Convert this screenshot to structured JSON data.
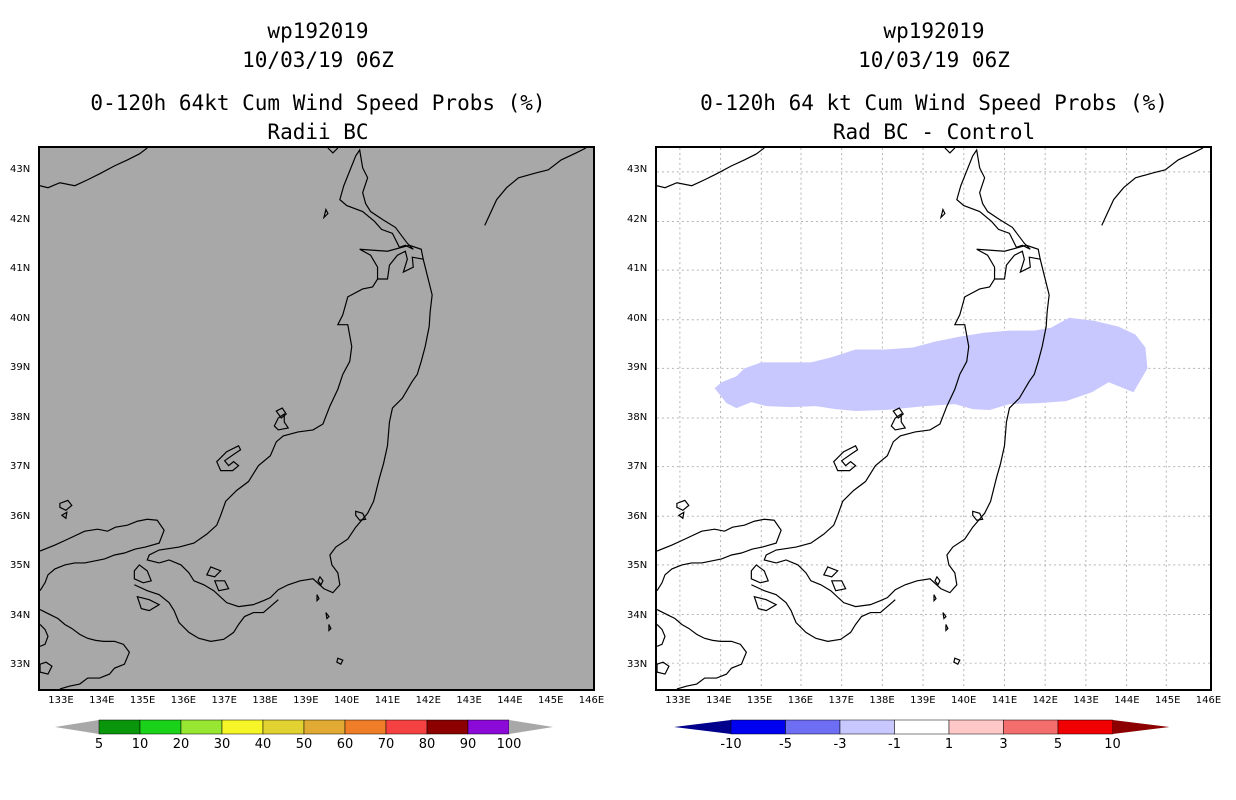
{
  "left_panel": {
    "title_line1": "wp192019",
    "title_line2": "10/03/19 06Z",
    "title_line3": "0-120h 64kt Cum Wind Speed Probs (%)",
    "title_line4": "Radii BC",
    "background_color": "#a8a8a8",
    "colorbar": {
      "colors": [
        "#0a960a",
        "#19d219",
        "#96e632",
        "#f5f528",
        "#e1d232",
        "#e1aa32",
        "#f07d28",
        "#f54141",
        "#8c0000",
        "#8c0ad7"
      ],
      "labels": [
        "5",
        "10",
        "20",
        "30",
        "40",
        "50",
        "60",
        "70",
        "80",
        "90",
        "100"
      ],
      "end_color": "#a8a8a8"
    }
  },
  "right_panel": {
    "title_line1": "wp192019",
    "title_line2": "10/03/19 06Z",
    "title_line3": "0-120h 64 kt Cum Wind Speed Probs (%)",
    "title_line4": "Rad BC - Control",
    "background_color": "#ffffff",
    "shaded_region_color": "#c8c8ff",
    "colorbar": {
      "colors": [
        "#0000f0",
        "#6e6ef5",
        "#c8c8ff",
        "#ffffff",
        "#ffc8c8",
        "#f56e6e",
        "#f00000"
      ],
      "labels": [
        "-10",
        "-5",
        "-3",
        "-1",
        "1",
        "3",
        "5",
        "10"
      ],
      "low_end_color": "#00008c",
      "high_end_color": "#8c0000"
    }
  },
  "lat_labels": [
    "43N",
    "42N",
    "41N",
    "40N",
    "39N",
    "38N",
    "37N",
    "36N",
    "35N",
    "34N",
    "33N"
  ],
  "lon_labels": [
    "133E",
    "134E",
    "135E",
    "136E",
    "137E",
    "138E",
    "139E",
    "140E",
    "141E",
    "142E",
    "143E",
    "144E",
    "145E",
    "146E"
  ]
}
